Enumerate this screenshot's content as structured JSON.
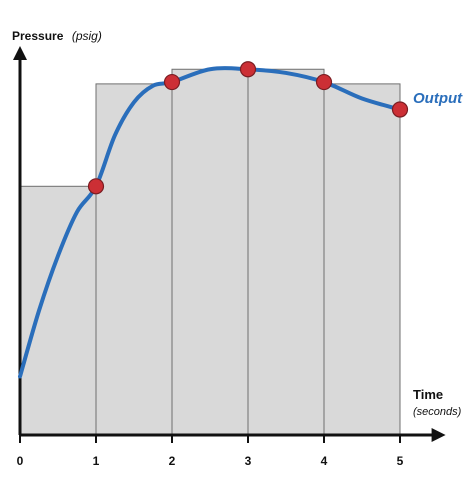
{
  "chart_data": {
    "type": "line",
    "ylabel": "Pressure",
    "ylabel_unit": "(psig)",
    "xlabel": "Time",
    "xlabel_unit": "(seconds)",
    "x_ticks": [
      "0",
      "1",
      "2",
      "3",
      "4",
      "5"
    ],
    "xlim": [
      0,
      5.6
    ],
    "ylim": [
      0,
      1.08
    ],
    "grid": false,
    "step_bars": [
      {
        "x_start": 0,
        "x_end": 1,
        "value": 0.68
      },
      {
        "x_start": 1,
        "x_end": 2,
        "value": 0.96
      },
      {
        "x_start": 2,
        "x_end": 3,
        "value": 1.0
      },
      {
        "x_start": 3,
        "x_end": 4,
        "value": 1.0
      },
      {
        "x_start": 4,
        "x_end": 5,
        "value": 0.96
      }
    ],
    "series": [
      {
        "name": "Output",
        "color": "#2a6ebb",
        "x": [
          0,
          0.25,
          0.5,
          0.75,
          1,
          1.25,
          1.5,
          1.75,
          2,
          2.5,
          3,
          3.5,
          4,
          4.5,
          5
        ],
        "values": [
          0.16,
          0.34,
          0.49,
          0.61,
          0.68,
          0.82,
          0.91,
          0.955,
          0.965,
          1.0,
          1.0,
          0.99,
          0.965,
          0.92,
          0.89
        ],
        "markers": [
          {
            "x": 1,
            "y": 0.68
          },
          {
            "x": 2,
            "y": 0.965
          },
          {
            "x": 3,
            "y": 1.0
          },
          {
            "x": 4,
            "y": 0.965
          },
          {
            "x": 5,
            "y": 0.89
          }
        ]
      }
    ],
    "colors": {
      "bar_fill": "#d9d9d9",
      "bar_stroke": "#6f6f6f",
      "marker_fill": "#cc2f35",
      "marker_stroke": "#7a1d22",
      "axis": "#111111"
    }
  }
}
